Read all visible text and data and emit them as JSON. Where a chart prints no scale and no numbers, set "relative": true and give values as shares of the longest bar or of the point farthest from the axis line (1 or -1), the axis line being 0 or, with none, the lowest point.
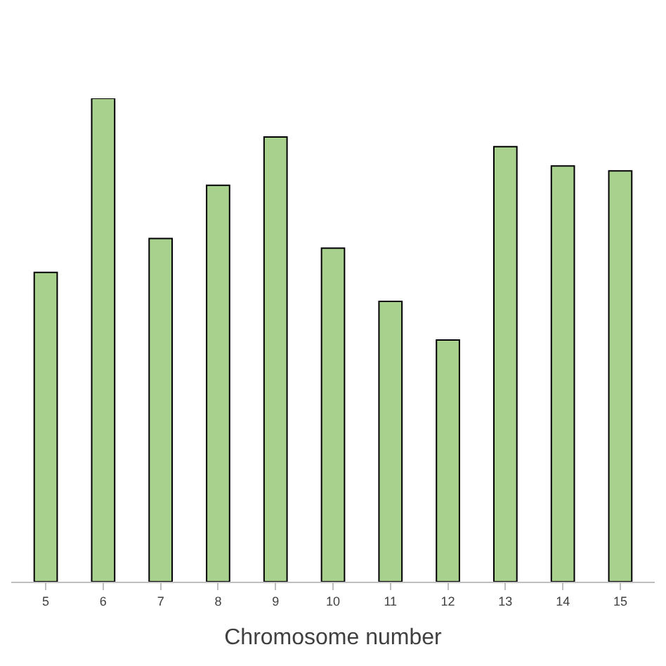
{
  "chart_data": {
    "type": "bar",
    "relative": true,
    "xlabel": "Chromosome number",
    "categories": [
      "5",
      "6",
      "7",
      "8",
      "9",
      "10",
      "11",
      "12",
      "13",
      "14",
      "15"
    ],
    "values": [
      0.64,
      1,
      0.71,
      0.82,
      0.92,
      0.69,
      0.58,
      0.5,
      0.9,
      0.86,
      0.85
    ],
    "color": "#a9d18e",
    "legend": false
  }
}
